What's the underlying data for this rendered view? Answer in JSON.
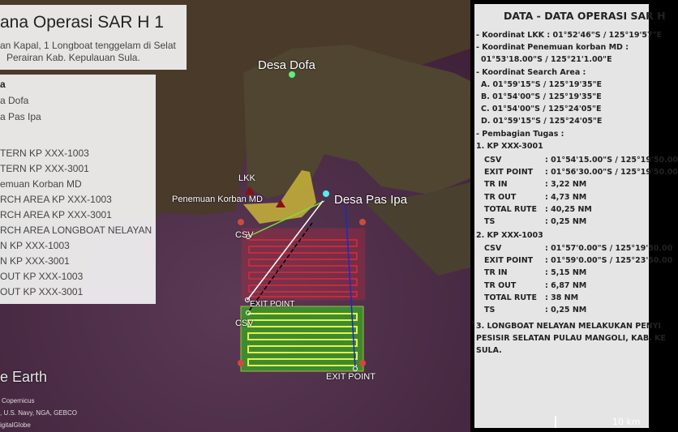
{
  "title_panel": {
    "title": "ana Operasi SAR H 1",
    "subtitle_line1": "an Kapal, 1 Longboat tenggelam di Selat",
    "subtitle_line2": "Perairan Kab. Kepulauan Sula."
  },
  "legend": {
    "heading": "a",
    "items": [
      "a Dofa",
      "a Pas Ipa",
      "TERN KP XXX-1003",
      "TERN KP XXX-3001",
      "emuan Korban MD",
      "RCH AREA KP XXX-1003",
      "RCH AREA KP XXX-3001",
      "RCH AREA LONGBOAT NELAYAN",
      "N KP XXX-1003",
      "N KP XXX-3001",
      "OUT KP XXX-1003",
      "OUT KP XXX-3001"
    ]
  },
  "map": {
    "labels": {
      "desa_dofa": "Desa Dofa",
      "desa_pas_ipa": "Desa Pas Ipa",
      "lkk": "LKK",
      "penemuan": "Penemuan Korban MD",
      "csv1": "CSV",
      "csv2": "CSV",
      "exit1": "EXIT POINT",
      "exit2": "EXIT POINT"
    },
    "logo": "e Earth",
    "attribution": [
      "Copernicus",
      ", U.S. Navy, NGA, GEBCO",
      "igitalGlobe"
    ],
    "scale": "10 km",
    "colors": {
      "sea": "#4a2a44",
      "search_area_3001": "#c8283c",
      "search_area_1003": "#3a9a2a",
      "track_1003": "#e6f04a",
      "longboat_area": "#c8b43a",
      "tr_in_3001": "#7de03a",
      "tr_out_3001": "#000000",
      "tr_in_1003": "#ffffff",
      "tr_out_1003": "#1a2acc"
    }
  },
  "data_panel": {
    "title": "DATA - DATA OPERASI SAR H",
    "lines": [
      "- Koordinat LKK : 01°52'46\"S / 125°19'57\"E",
      "- Koordinat Penemuan korban MD :",
      "  01°53'18.00\"S / 125°21'1.00\"E",
      "- Koordinat Search Area :",
      "  A. 01°59'15\"S / 125°19'35\"E",
      "  B. 01°54'00\"S / 125°19'35\"E",
      "  C. 01°54'00\"S / 125°24'05\"E",
      "  D. 01°59'15\"S / 125°24'05\"E",
      "- Pembagian Tugas :",
      "1. KP XXX-3001"
    ],
    "kp3001": [
      [
        "CSV",
        ": 01°54'15.00\"S / 125°19'50.00"
      ],
      [
        "EXIT POINT",
        ": 01°56'30.00\"S / 125°19'50.00"
      ],
      [
        "TR IN",
        ": 3,22 NM"
      ],
      [
        "TR OUT",
        ": 4,73 NM"
      ],
      [
        "TOTAL RUTE",
        ": 40,25 NM"
      ],
      [
        "TS",
        ": 0,25 NM"
      ]
    ],
    "kp1003_title": "2. KP XXX-1003",
    "kp1003": [
      [
        "CSV",
        ": 01°57'0.00\"S / 125°19'50.00"
      ],
      [
        "EXIT POINT",
        ": 01°59'0.00\"S / 125°23'50.00"
      ],
      [
        "TR IN",
        ": 5,15 NM"
      ],
      [
        "TR OUT",
        ": 6,87 NM"
      ],
      [
        "TOTAL RUTE",
        ": 38 NM"
      ],
      [
        "TS",
        ": 0,25 NM"
      ]
    ],
    "note": [
      "3. LONGBOAT NELAYAN MELAKUKAN PENYI",
      "PESISIR SELATAN PULAU MANGOLI, KAB. KE",
      "SULA."
    ]
  }
}
